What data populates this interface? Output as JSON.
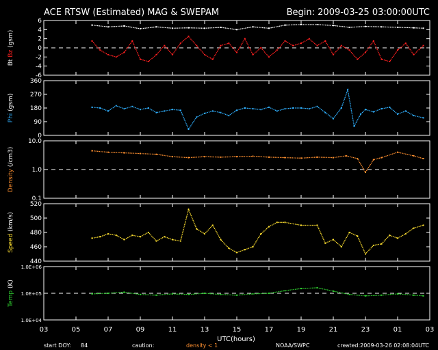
{
  "header": {
    "title": "ACE RTSW (Estimated) MAG & SWEPAM",
    "begin": "Begin: 2009-03-25 03:00:00UTC"
  },
  "footer": {
    "start_doy_label": "start DOY:",
    "start_doy_value": "84",
    "caution_label": "caution:",
    "density_note": "density < 1",
    "source": "NOAA/SWPC",
    "created": "created:2009-03-26 02:08:04UTC"
  },
  "colors": {
    "background": "#000000",
    "axes": "#ffffff",
    "bt": "#ffffff",
    "bz": "#ff2020",
    "phi": "#30b0ff",
    "density": "#ff9030",
    "speed": "#ffe030",
    "temp": "#30d030"
  },
  "chart_data": [
    {
      "type": "scatter",
      "ylabel_parts": [
        "Bt",
        "Bz",
        "(gsm)"
      ],
      "ylim": [
        -6,
        6
      ],
      "yticks": [
        "6",
        "4",
        "2",
        "0",
        "-2",
        "-4",
        "-6"
      ],
      "reference_line": 0,
      "series": [
        {
          "name": "Bt",
          "x": [
            6.0,
            7.0,
            8.0,
            9.0,
            10.0,
            11.0,
            12.0,
            13.0,
            14.0,
            15.0,
            16.0,
            17.0,
            18.0,
            19.0,
            20.0,
            21.0,
            22.0,
            23.0,
            24.0,
            25.0,
            26.0,
            26.6
          ],
          "values": [
            5.0,
            4.6,
            4.8,
            4.2,
            4.6,
            4.3,
            4.4,
            4.3,
            4.5,
            4.0,
            4.6,
            4.3,
            5.0,
            5.1,
            5.1,
            4.9,
            4.5,
            4.7,
            4.6,
            4.5,
            4.4,
            4.3
          ]
        },
        {
          "name": "Bz",
          "x": [
            6.0,
            6.5,
            7.0,
            7.5,
            8.0,
            8.5,
            9.0,
            9.5,
            10.0,
            10.5,
            11.0,
            11.5,
            12.0,
            12.5,
            13.0,
            13.5,
            14.0,
            14.5,
            15.0,
            15.5,
            16.0,
            16.5,
            17.0,
            17.5,
            18.0,
            18.5,
            19.0,
            19.5,
            20.0,
            20.5,
            21.0,
            21.5,
            22.0,
            22.5,
            23.0,
            23.5,
            24.0,
            24.5,
            25.0,
            25.5,
            26.0,
            26.6
          ],
          "values": [
            1.5,
            -0.5,
            -1.5,
            -2.0,
            -1.0,
            1.5,
            -2.5,
            -3.0,
            -1.5,
            0.5,
            -1.5,
            1.0,
            2.5,
            0.5,
            -1.5,
            -2.5,
            0.5,
            1.0,
            -1.0,
            2.0,
            -1.5,
            0.0,
            -2.0,
            -0.5,
            1.5,
            0.5,
            1.0,
            2.0,
            0.5,
            1.5,
            -1.5,
            0.5,
            -0.5,
            -2.5,
            -1.0,
            1.5,
            -2.5,
            -3.0,
            -0.5,
            1.0,
            -1.5,
            0.5
          ]
        }
      ]
    },
    {
      "type": "scatter",
      "ylabel": "Phi (gsm)",
      "ylim": [
        0,
        360
      ],
      "yticks": [
        "360",
        "270",
        "180",
        "90",
        "0"
      ],
      "series": [
        {
          "name": "Phi",
          "x": [
            6.0,
            6.5,
            7.0,
            7.5,
            8.0,
            8.5,
            9.0,
            9.5,
            10.0,
            10.5,
            11.0,
            11.5,
            12.0,
            12.5,
            13.0,
            13.5,
            14.0,
            14.5,
            15.0,
            15.5,
            16.0,
            16.5,
            17.0,
            17.5,
            18.0,
            18.5,
            19.0,
            19.5,
            20.0,
            20.5,
            21.0,
            21.5,
            21.9,
            22.3,
            22.7,
            23.0,
            23.5,
            24.0,
            24.5,
            25.0,
            25.5,
            26.0,
            26.6
          ],
          "values": [
            185,
            180,
            160,
            195,
            175,
            190,
            170,
            180,
            150,
            160,
            170,
            165,
            40,
            120,
            145,
            160,
            150,
            130,
            165,
            180,
            175,
            170,
            185,
            160,
            175,
            180,
            180,
            175,
            190,
            150,
            110,
            180,
            300,
            60,
            140,
            170,
            155,
            175,
            185,
            140,
            160,
            130,
            115
          ]
        }
      ]
    },
    {
      "type": "scatter",
      "ylabel": "Density (/cm3)",
      "scale": "log",
      "ylim": [
        0.1,
        10.0
      ],
      "yticks": [
        "10.0",
        "1.0",
        "0.1"
      ],
      "reference_line": 1.0,
      "series": [
        {
          "name": "Density",
          "x": [
            6.0,
            7.0,
            8.0,
            9.0,
            10.0,
            11.0,
            12.0,
            13.0,
            14.0,
            15.0,
            16.0,
            17.0,
            18.0,
            19.0,
            20.0,
            21.0,
            21.8,
            22.5,
            23.0,
            23.5,
            24.0,
            25.0,
            26.0,
            26.6
          ],
          "values": [
            4.5,
            4.0,
            3.8,
            3.6,
            3.4,
            2.8,
            2.6,
            2.8,
            2.7,
            2.8,
            2.9,
            2.7,
            2.6,
            2.5,
            2.7,
            2.6,
            3.0,
            2.4,
            0.8,
            2.2,
            2.6,
            4.0,
            3.0,
            2.4
          ]
        }
      ]
    },
    {
      "type": "scatter",
      "ylabel": "Speed (km/s)",
      "ylim": [
        440,
        520
      ],
      "yticks": [
        "520",
        "500",
        "480",
        "460",
        "440"
      ],
      "series": [
        {
          "name": "Speed",
          "x": [
            6.0,
            6.5,
            7.0,
            7.5,
            8.0,
            8.5,
            9.0,
            9.5,
            10.0,
            10.5,
            11.0,
            11.5,
            12.0,
            12.5,
            13.0,
            13.5,
            14.0,
            14.5,
            15.0,
            15.5,
            16.0,
            16.5,
            17.0,
            17.5,
            18.0,
            19.0,
            20.0,
            20.5,
            21.0,
            21.5,
            22.0,
            22.5,
            23.0,
            23.5,
            24.0,
            24.5,
            25.0,
            25.5,
            26.0,
            26.6
          ],
          "values": [
            472,
            474,
            478,
            476,
            470,
            476,
            474,
            480,
            468,
            474,
            470,
            468,
            512,
            485,
            478,
            490,
            470,
            458,
            452,
            456,
            460,
            478,
            488,
            494,
            494,
            490,
            490,
            465,
            470,
            460,
            480,
            475,
            450,
            462,
            464,
            476,
            472,
            478,
            486,
            490
          ]
        }
      ]
    },
    {
      "type": "scatter",
      "ylabel": "Temp (K)",
      "scale": "log",
      "ylim": [
        10000,
        1000000
      ],
      "yticks": [
        "1.0E+06",
        "1.0E+05",
        "1.0E+04"
      ],
      "reference_line": 100000,
      "series": [
        {
          "name": "Temp",
          "x": [
            6.0,
            7.0,
            8.0,
            9.0,
            10.0,
            11.0,
            12.0,
            13.0,
            14.0,
            15.0,
            16.0,
            17.0,
            18.0,
            19.0,
            20.0,
            21.0,
            22.0,
            23.0,
            24.0,
            25.0,
            26.0,
            26.6
          ],
          "values": [
            95000,
            100000,
            110000,
            90000,
            85000,
            95000,
            90000,
            100000,
            90000,
            85000,
            95000,
            100000,
            125000,
            150000,
            160000,
            120000,
            90000,
            80000,
            85000,
            95000,
            85000,
            80000
          ]
        }
      ]
    }
  ],
  "x_axis": {
    "label": "UTC(hours)",
    "range": [
      3,
      27
    ],
    "ticks": [
      "03",
      "05",
      "07",
      "09",
      "11",
      "13",
      "15",
      "17",
      "19",
      "21",
      "23",
      "01",
      "03"
    ]
  }
}
